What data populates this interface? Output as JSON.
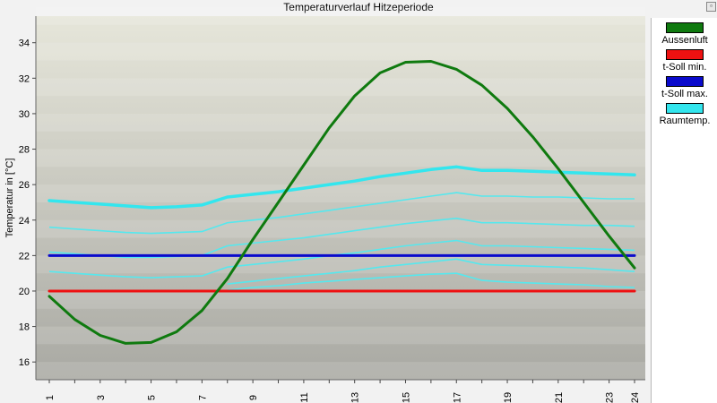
{
  "chart_data": {
    "type": "line",
    "title": "Temperaturverlauf Hitzeperiode",
    "xlabel": "",
    "ylabel": "Temperatur in [°C]",
    "xlim": [
      1,
      24
    ],
    "ylim": [
      15,
      35.5
    ],
    "x_ticks_labeled": [
      1,
      3,
      5,
      7,
      9,
      11,
      13,
      15,
      17,
      19,
      21,
      23,
      24
    ],
    "y_ticks": [
      16,
      18,
      20,
      22,
      24,
      26,
      28,
      30,
      32,
      34
    ],
    "grid": "horizontal bands",
    "legend_placement": "right",
    "x": [
      1,
      2,
      3,
      4,
      5,
      6,
      7,
      8,
      9,
      10,
      11,
      12,
      13,
      14,
      15,
      16,
      17,
      18,
      19,
      20,
      21,
      22,
      23,
      24
    ],
    "series": [
      {
        "name": "Aussenluft",
        "color": "#0f7a0f",
        "width": 3,
        "values": [
          19.7,
          18.4,
          17.5,
          17.05,
          17.1,
          17.7,
          18.9,
          20.7,
          22.9,
          25.0,
          27.1,
          29.2,
          31.0,
          32.3,
          32.9,
          32.95,
          32.5,
          31.6,
          30.3,
          28.7,
          26.9,
          25.0,
          23.1,
          21.3
        ]
      },
      {
        "name": "t-Soll min.",
        "color": "#ee1111",
        "width": 3,
        "values": [
          20,
          20,
          20,
          20,
          20,
          20,
          20,
          20,
          20,
          20,
          20,
          20,
          20,
          20,
          20,
          20,
          20,
          20,
          20,
          20,
          20,
          20,
          20,
          20
        ]
      },
      {
        "name": "t-Soll max.",
        "color": "#0a0acc",
        "width": 3,
        "values": [
          22,
          22,
          22,
          22,
          22,
          22,
          22,
          22,
          22,
          22,
          22,
          22,
          22,
          22,
          22,
          22,
          22,
          22,
          22,
          22,
          22,
          22,
          22,
          22
        ]
      },
      {
        "name": "Raumtemp.",
        "color": "#33e6ee",
        "width": 3.5,
        "values": [
          25.1,
          25.0,
          24.9,
          24.8,
          24.7,
          24.75,
          24.85,
          25.3,
          25.45,
          25.6,
          25.8,
          26.0,
          26.2,
          26.45,
          26.65,
          26.85,
          27.0,
          26.8,
          26.8,
          26.75,
          26.7,
          26.65,
          26.6,
          26.55
        ]
      }
    ],
    "extra_lines": [
      {
        "color": "#55e8ee",
        "width": 1.6,
        "values": [
          23.6,
          23.5,
          23.4,
          23.3,
          23.25,
          23.3,
          23.35,
          23.85,
          24.0,
          24.15,
          24.35,
          24.55,
          24.75,
          24.95,
          25.15,
          25.35,
          25.55,
          25.35,
          25.35,
          25.3,
          25.3,
          25.25,
          25.2,
          25.2
        ]
      },
      {
        "color": "#55e8ee",
        "width": 1.6,
        "values": [
          22.2,
          22.1,
          22.0,
          21.9,
          21.9,
          21.95,
          22.0,
          22.55,
          22.7,
          22.85,
          23.0,
          23.2,
          23.4,
          23.6,
          23.8,
          23.95,
          24.1,
          23.85,
          23.85,
          23.8,
          23.75,
          23.7,
          23.7,
          23.65
        ]
      },
      {
        "color": "#55e8ee",
        "width": 1.6,
        "values": [
          21.1,
          21.0,
          20.9,
          20.8,
          20.75,
          20.8,
          20.85,
          21.35,
          21.5,
          21.65,
          21.8,
          22.0,
          22.15,
          22.35,
          22.55,
          22.7,
          22.85,
          22.55,
          22.55,
          22.5,
          22.45,
          22.4,
          22.35,
          22.3
        ]
      },
      {
        "color": "#55e8ee",
        "width": 1.6,
        "values": [
          null,
          null,
          null,
          null,
          null,
          null,
          null,
          20.4,
          20.55,
          20.7,
          20.85,
          21.0,
          21.15,
          21.35,
          21.5,
          21.65,
          21.8,
          21.5,
          21.45,
          21.4,
          21.35,
          21.3,
          21.2,
          21.1
        ]
      },
      {
        "color": "#55e8ee",
        "width": 1.6,
        "values": [
          null,
          null,
          null,
          null,
          null,
          null,
          null,
          20.05,
          20.2,
          20.3,
          20.45,
          20.55,
          20.65,
          20.75,
          20.85,
          20.95,
          21.0,
          20.6,
          20.5,
          20.45,
          20.4,
          20.35,
          20.25,
          20.2
        ]
      }
    ],
    "legend": [
      {
        "label": "Aussenluft",
        "color": "#0f7a0f"
      },
      {
        "label": "t-Soll min.",
        "color": "#ee1111"
      },
      {
        "label": "t-Soll max.",
        "color": "#0a0acc"
      },
      {
        "label": "Raumtemp.",
        "color": "#33e6ee"
      }
    ]
  }
}
